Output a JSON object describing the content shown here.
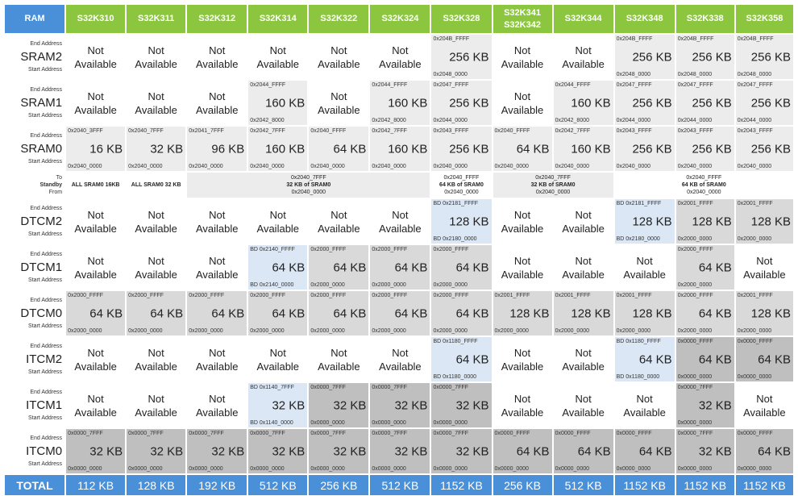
{
  "header": {
    "ram_label": "RAM",
    "columns": [
      {
        "line1": "S32K310",
        "line2": ""
      },
      {
        "line1": "S32K311",
        "line2": ""
      },
      {
        "line1": "S32K312",
        "line2": ""
      },
      {
        "line1": "S32K314",
        "line2": ""
      },
      {
        "line1": "S32K322",
        "line2": ""
      },
      {
        "line1": "S32K324",
        "line2": ""
      },
      {
        "line1": "S32K328",
        "line2": ""
      },
      {
        "line1": "S32K341",
        "line2": "S32K342"
      },
      {
        "line1": "S32K344",
        "line2": ""
      },
      {
        "line1": "S32K348",
        "line2": ""
      },
      {
        "line1": "S32K338",
        "line2": ""
      },
      {
        "line1": "S32K358",
        "line2": ""
      }
    ]
  },
  "labels": {
    "end_address": "End Address",
    "start_address": "Start Address",
    "standby_to": "To",
    "standby_title": "Standby",
    "standby_from": "From",
    "not": "Not",
    "available": "Available"
  },
  "colors": {
    "header_green": "#8cc63f",
    "header_blue": "#4a90d9",
    "light_gray": "#ececec",
    "mid_gray": "#d9d9d9",
    "dark_gray": "#bfbfbf",
    "light_blue": "#dbe7f4"
  },
  "rows": [
    {
      "name": "SRAM2",
      "cells": [
        {
          "na": true
        },
        {
          "na": true
        },
        {
          "na": true
        },
        {
          "na": true
        },
        {
          "na": true
        },
        {
          "na": true
        },
        {
          "end": "0x204B_FFFF",
          "size": "256 KB",
          "start": "0x2048_0000",
          "bg": "g1"
        },
        {
          "na": true
        },
        {
          "na": true
        },
        {
          "end": "0x204B_FFFF",
          "size": "256 KB",
          "start": "0x2048_0000",
          "bg": "g1"
        },
        {
          "end": "0x204B_FFFF",
          "size": "256 KB",
          "start": "0x2048_0000",
          "bg": "g1"
        },
        {
          "end": "0x204B_FFFF",
          "size": "256 KB",
          "start": "0x2048_0000",
          "bg": "g1"
        }
      ]
    },
    {
      "name": "SRAM1",
      "cells": [
        {
          "na": true
        },
        {
          "na": true
        },
        {
          "na": true
        },
        {
          "end": "0x2044_FFFF",
          "size": "160 KB",
          "start": "0x2042_8000",
          "bg": "g1"
        },
        {
          "na": true
        },
        {
          "end": "0x2044_FFFF",
          "size": "160 KB",
          "start": "0x2042_8000",
          "bg": "g1"
        },
        {
          "end": "0x2047_FFFF",
          "size": "256 KB",
          "start": "0x2044_0000",
          "bg": "g1"
        },
        {
          "na": true
        },
        {
          "end": "0x2044_FFFF",
          "size": "160 KB",
          "start": "0x2042_8000",
          "bg": "g1"
        },
        {
          "end": "0x2047_FFFF",
          "size": "256 KB",
          "start": "0x2044_0000",
          "bg": "g1"
        },
        {
          "end": "0x2047_FFFF",
          "size": "256 KB",
          "start": "0x2044_0000",
          "bg": "g1"
        },
        {
          "end": "0x2047_FFFF",
          "size": "256 KB",
          "start": "0x2044_0000",
          "bg": "g1"
        }
      ]
    },
    {
      "name": "SRAM0",
      "cells": [
        {
          "end": "0x2040_3FFF",
          "size": "16 KB",
          "start": "0x2040_0000",
          "bg": "g1"
        },
        {
          "end": "0x2040_7FFF",
          "size": "32 KB",
          "start": "0x2040_0000",
          "bg": "g1"
        },
        {
          "end": "0x2041_7FFF",
          "size": "96 KB",
          "start": "0x2040_0000",
          "bg": "g1"
        },
        {
          "end": "0x2042_7FFF",
          "size": "160 KB",
          "start": "0x2040_0000",
          "bg": "g1"
        },
        {
          "end": "0x2040_FFFF",
          "size": "64 KB",
          "start": "0x2040_0000",
          "bg": "g1"
        },
        {
          "end": "0x2042_7FFF",
          "size": "160 KB",
          "start": "0x2040_0000",
          "bg": "g1"
        },
        {
          "end": "0x2043_FFFF",
          "size": "256 KB",
          "start": "0x2040_0000",
          "bg": "g1"
        },
        {
          "end": "0x2040_FFFF",
          "size": "64 KB",
          "start": "0x2040_0000",
          "bg": "g1"
        },
        {
          "end": "0x2042_7FFF",
          "size": "160 KB",
          "start": "0x2040_0000",
          "bg": "g1"
        },
        {
          "end": "0x2043_FFFF",
          "size": "256 KB",
          "start": "0x2040_0000",
          "bg": "g1"
        },
        {
          "end": "0x2043_FFFF",
          "size": "256 KB",
          "start": "0x2040_0000",
          "bg": "g1"
        },
        {
          "end": "0x2043_FFFF",
          "size": "256 KB",
          "start": "0x2040_0000",
          "bg": "g1"
        }
      ]
    },
    {
      "name": "DTCM2",
      "cells": [
        {
          "na": true
        },
        {
          "na": true
        },
        {
          "na": true
        },
        {
          "na": true
        },
        {
          "na": true
        },
        {
          "na": true
        },
        {
          "end": "BD 0x2181_FFFF",
          "size": "128 KB",
          "start": "BD 0x2180_0000",
          "bg": "bl"
        },
        {
          "na": true
        },
        {
          "na": true
        },
        {
          "end": "BD 0x2181_FFFF",
          "size": "128 KB",
          "start": "BD 0x2180_0000",
          "bg": "bl"
        },
        {
          "end": "0x2001_FFFF",
          "size": "128 KB",
          "start": "0x2000_0000",
          "bg": "g2"
        },
        {
          "end": "0x2001_FFFF",
          "size": "128 KB",
          "start": "0x2000_0000",
          "bg": "g2"
        }
      ]
    },
    {
      "name": "DTCM1",
      "cells": [
        {
          "na": true
        },
        {
          "na": true
        },
        {
          "na": true
        },
        {
          "end": "BD 0x2140_FFFF",
          "size": "64 KB",
          "start": "BD 0x2140_0000",
          "bg": "bl"
        },
        {
          "end": "0x2000_FFFF",
          "size": "64 KB",
          "start": "0x2000_0000",
          "bg": "g2"
        },
        {
          "end": "0x2000_FFFF",
          "size": "64 KB",
          "start": "0x2000_0000",
          "bg": "g2"
        },
        {
          "end": "0x2000_FFFF",
          "size": "64 KB",
          "start": "0x2000_0000",
          "bg": "g2"
        },
        {
          "na": true
        },
        {
          "na": true
        },
        {
          "na": true
        },
        {
          "end": "0x2000_FFFF",
          "size": "64 KB",
          "start": "0x2000_0000",
          "bg": "g2"
        },
        {
          "na": true
        }
      ]
    },
    {
      "name": "DTCM0",
      "cells": [
        {
          "end": "0x2000_FFFF",
          "size": "64 KB",
          "start": "0x2000_0000",
          "bg": "g2"
        },
        {
          "end": "0x2000_FFFF",
          "size": "64 KB",
          "start": "0x2000_0000",
          "bg": "g2"
        },
        {
          "end": "0x2000_FFFF",
          "size": "64 KB",
          "start": "0x2000_0000",
          "bg": "g2"
        },
        {
          "end": "0x2000_FFFF",
          "size": "64 KB",
          "start": "0x2000_0000",
          "bg": "g2"
        },
        {
          "end": "0x2000_FFFF",
          "size": "64 KB",
          "start": "0x2000_0000",
          "bg": "g2"
        },
        {
          "end": "0x2000_FFFF",
          "size": "64 KB",
          "start": "0x2000_0000",
          "bg": "g2"
        },
        {
          "end": "0x2000_FFFF",
          "size": "64 KB",
          "start": "0x2000_0000",
          "bg": "g2"
        },
        {
          "end": "0x2001_FFFF",
          "size": "128 KB",
          "start": "0x2000_0000",
          "bg": "g2"
        },
        {
          "end": "0x2001_FFFF",
          "size": "128 KB",
          "start": "0x2000_0000",
          "bg": "g2"
        },
        {
          "end": "0x2001_FFFF",
          "size": "128 KB",
          "start": "0x2000_0000",
          "bg": "g2"
        },
        {
          "end": "0x2000_FFFF",
          "size": "64 KB",
          "start": "0x2000_0000",
          "bg": "g2"
        },
        {
          "end": "0x2001_FFFF",
          "size": "128 KB",
          "start": "0x2000_0000",
          "bg": "g2"
        }
      ]
    },
    {
      "name": "ITCM2",
      "cells": [
        {
          "na": true
        },
        {
          "na": true
        },
        {
          "na": true
        },
        {
          "na": true
        },
        {
          "na": true
        },
        {
          "na": true
        },
        {
          "end": "BD 0x1180_FFFF",
          "size": "64 KB",
          "start": "BD 0x1180_0000",
          "bg": "bl"
        },
        {
          "na": true
        },
        {
          "na": true
        },
        {
          "end": "BD 0x1180_FFFF",
          "size": "64 KB",
          "start": "BD 0x1180_0000",
          "bg": "bl"
        },
        {
          "end": "0x0000_FFFF",
          "size": "64 KB",
          "start": "0x0000_0000",
          "bg": "g3"
        },
        {
          "end": "0x0000_FFFF",
          "size": "64 KB",
          "start": "0x0000_0000",
          "bg": "g3"
        }
      ]
    },
    {
      "name": "ITCM1",
      "cells": [
        {
          "na": true
        },
        {
          "na": true
        },
        {
          "na": true
        },
        {
          "end": "BD 0x1140_7FFF",
          "size": "32 KB",
          "start": "BD 0x1140_0000",
          "bg": "bl"
        },
        {
          "end": "0x0000_7FFF",
          "size": "32 KB",
          "start": "0x0000_0000",
          "bg": "g3"
        },
        {
          "end": "0x0000_7FFF",
          "size": "32 KB",
          "start": "0x0000_0000",
          "bg": "g3"
        },
        {
          "end": "0x0000_7FFF",
          "size": "32 KB",
          "start": "0x0000_0000",
          "bg": "g3"
        },
        {
          "na": true
        },
        {
          "na": true
        },
        {
          "na": true
        },
        {
          "end": "0x0000_7FFF",
          "size": "32 KB",
          "start": "0x0000_0000",
          "bg": "g3"
        },
        {
          "na": true
        }
      ]
    },
    {
      "name": "ITCM0",
      "cells": [
        {
          "end": "0x0000_7FFF",
          "size": "32 KB",
          "start": "0x0000_0000",
          "bg": "g3"
        },
        {
          "end": "0x0000_7FFF",
          "size": "32 KB",
          "start": "0x0000_0000",
          "bg": "g3"
        },
        {
          "end": "0x0000_7FFF",
          "size": "32 KB",
          "start": "0x0000_0000",
          "bg": "g3"
        },
        {
          "end": "0x0000_7FFF",
          "size": "32 KB",
          "start": "0x0000_0000",
          "bg": "g3"
        },
        {
          "end": "0x0000_7FFF",
          "size": "32 KB",
          "start": "0x0000_0000",
          "bg": "g3"
        },
        {
          "end": "0x0000_7FFF",
          "size": "32 KB",
          "start": "0x0000_0000",
          "bg": "g3"
        },
        {
          "end": "0x0000_7FFF",
          "size": "32 KB",
          "start": "0x0000_0000",
          "bg": "g3"
        },
        {
          "end": "0x0000_FFFF",
          "size": "64 KB",
          "start": "0x0000_0000",
          "bg": "g3"
        },
        {
          "end": "0x0000_FFFF",
          "size": "64 KB",
          "start": "0x0000_0000",
          "bg": "g3"
        },
        {
          "end": "0x0000_FFFF",
          "size": "64 KB",
          "start": "0x0000_0000",
          "bg": "g3"
        },
        {
          "end": "0x0000_7FFF",
          "size": "32 KB",
          "start": "0x0000_0000",
          "bg": "g3"
        },
        {
          "end": "0x0000_FFFF",
          "size": "64 KB",
          "start": "0x0000_0000",
          "bg": "g3"
        }
      ]
    }
  ],
  "standby": [
    {
      "span": 1,
      "bold": "ALL SRAM0 16KB",
      "end": "",
      "start": "",
      "white": true
    },
    {
      "span": 1,
      "bold": "ALL SRAM0 32 KB",
      "end": "",
      "start": "",
      "white": true
    },
    {
      "span": 4,
      "bold": "32 KB  of SRAM0",
      "end": "0x2040_7FFF",
      "start": "0x2040_0000",
      "white": false
    },
    {
      "span": 1,
      "bold": "64 KB  of SRAM0",
      "end": "0x2040_FFFF",
      "start": "0x2040_0000",
      "white": true
    },
    {
      "span": 2,
      "bold": "32 KB  of SRAM0",
      "end": "0x2040_7FFF",
      "start": "0x2040_0000",
      "white": false
    },
    {
      "span": 3,
      "bold": "64 KB  of SRAM0",
      "end": "0x2040_FFFF",
      "start": "0x2040_0000",
      "white": true
    }
  ],
  "total": {
    "label": "TOTAL",
    "values": [
      "112 KB",
      "128 KB",
      "192 KB",
      "512 KB",
      "256 KB",
      "512 KB",
      "1152 KB",
      "256 KB",
      "512 KB",
      "1152 KB",
      "1152 KB",
      "1152 KB"
    ]
  }
}
